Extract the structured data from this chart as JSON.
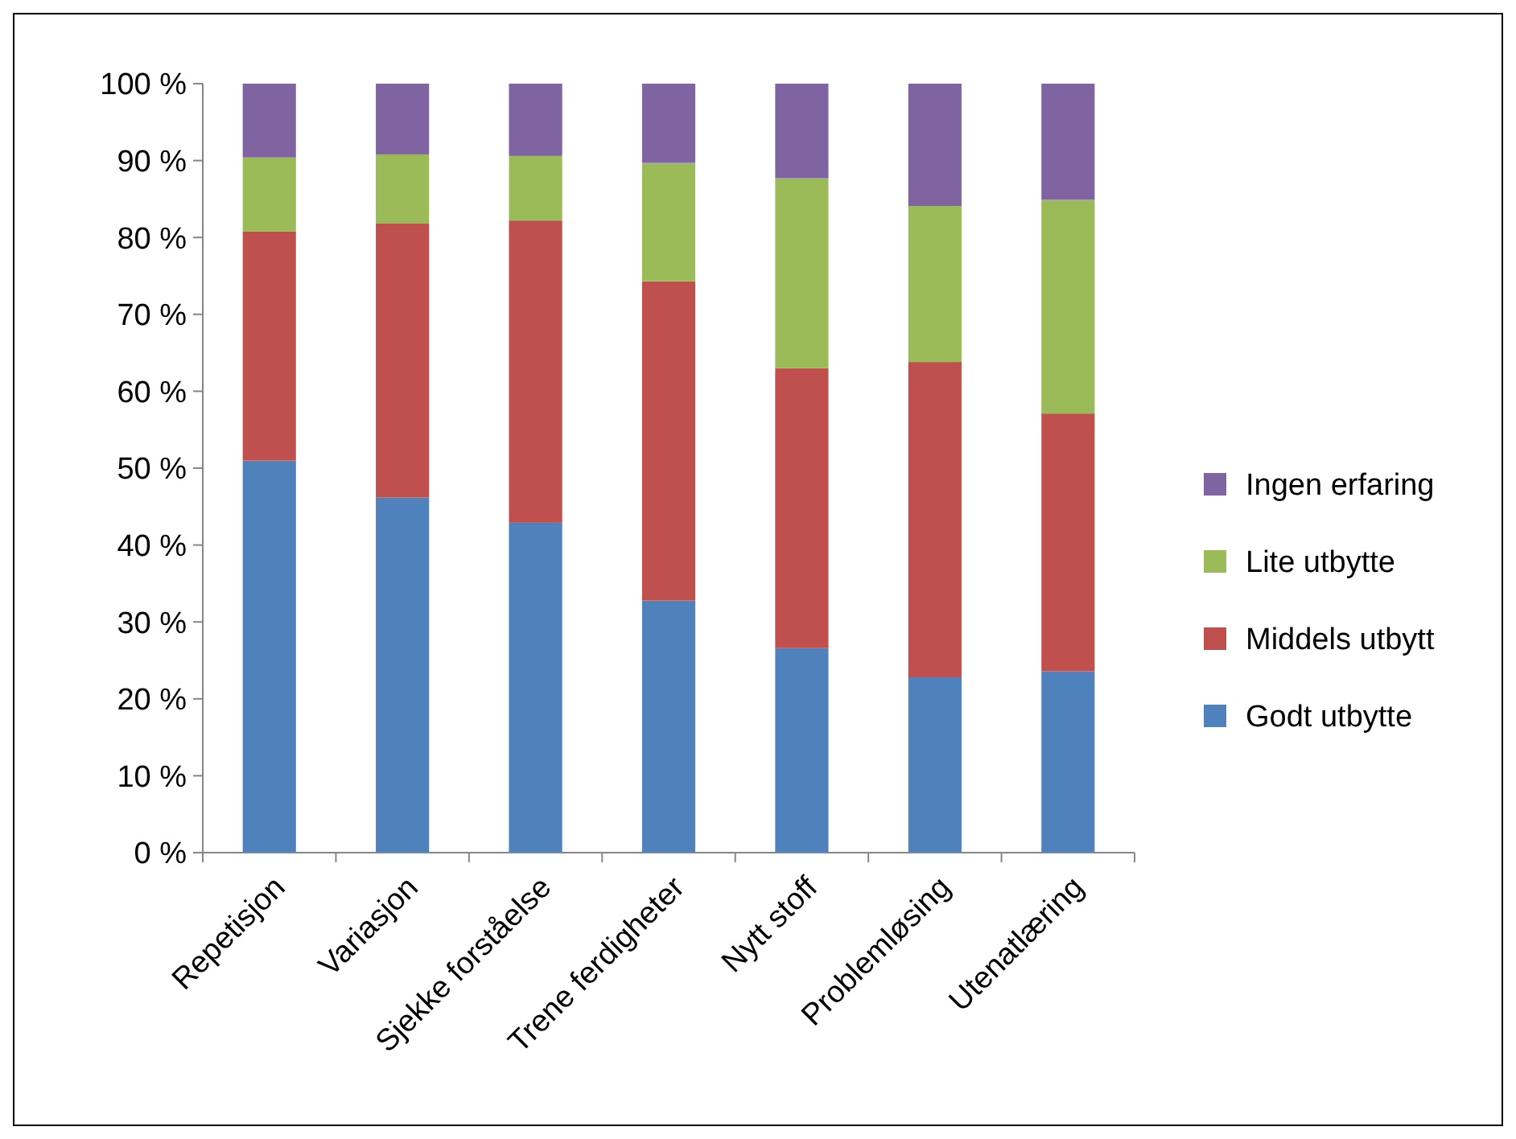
{
  "chart_data": {
    "type": "bar",
    "stacked": true,
    "categories": [
      "Repetisjon",
      "Variasjon",
      "Sjekke forståelse",
      "Trene ferdigheter",
      "Nytt stoff",
      "Problemløsing",
      "Utenatlæring"
    ],
    "series": [
      {
        "name": "Godt utbytte",
        "color": "#4f81bd",
        "values": [
          51.0,
          46.2,
          42.9,
          32.8,
          26.6,
          22.8,
          23.6
        ]
      },
      {
        "name": "Middels utbytt",
        "color": "#c0504d",
        "values": [
          29.8,
          35.6,
          39.3,
          41.5,
          36.4,
          41.0,
          33.5
        ]
      },
      {
        "name": "Lite utbytte",
        "color": "#9bbb59",
        "values": [
          9.6,
          9.0,
          8.4,
          15.4,
          24.7,
          20.3,
          27.8
        ]
      },
      {
        "name": "Ingen erfaring",
        "color": "#8064a2",
        "values": [
          9.6,
          9.2,
          9.4,
          10.3,
          12.3,
          15.9,
          15.1
        ]
      }
    ],
    "ylim": [
      0,
      100
    ],
    "yticks": [
      {
        "value": 0,
        "label": "0 %"
      },
      {
        "value": 10,
        "label": "10 %"
      },
      {
        "value": 20,
        "label": "20 %"
      },
      {
        "value": 30,
        "label": "30 %"
      },
      {
        "value": 40,
        "label": "40 %"
      },
      {
        "value": 50,
        "label": "50 %"
      },
      {
        "value": 60,
        "label": "60 %"
      },
      {
        "value": 70,
        "label": "70 %"
      },
      {
        "value": 80,
        "label": "80 %"
      },
      {
        "value": 90,
        "label": "90 %"
      },
      {
        "value": 100,
        "label": "100 %"
      }
    ],
    "grid": false,
    "legend": "right"
  }
}
